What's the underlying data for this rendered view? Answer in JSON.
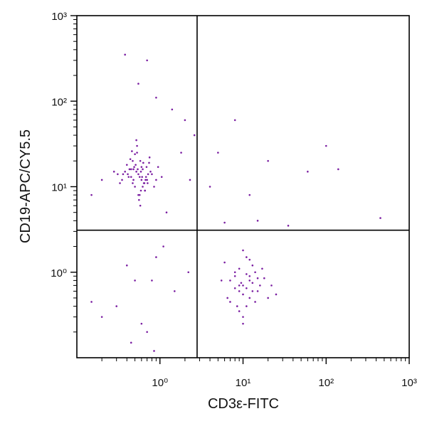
{
  "chart_data": {
    "type": "scatter",
    "x_label": "CD3ε-FITC",
    "y_label": "CD19-APC/CY5.5",
    "xscale": "log",
    "yscale": "log",
    "xlim": [
      0.1,
      1000
    ],
    "ylim": [
      0.1,
      1000
    ],
    "xticks": [
      {
        "value": 1,
        "label": "10⁰"
      },
      {
        "value": 10,
        "label": "10¹"
      },
      {
        "value": 100,
        "label": "10²"
      },
      {
        "value": 1000,
        "label": "10³"
      }
    ],
    "yticks": [
      {
        "value": 1,
        "label": "10⁰"
      },
      {
        "value": 10,
        "label": "10¹"
      },
      {
        "value": 100,
        "label": "10²"
      },
      {
        "value": 1000,
        "label": "10³"
      }
    ],
    "xminorticks": [
      0.2,
      0.3,
      0.4,
      0.5,
      0.6,
      0.7,
      0.8,
      0.9,
      2,
      3,
      4,
      5,
      6,
      7,
      8,
      9,
      20,
      30,
      40,
      50,
      60,
      70,
      80,
      90,
      200,
      300,
      400,
      500,
      600,
      700,
      800,
      900
    ],
    "yminorticks": [
      0.2,
      0.3,
      0.4,
      0.5,
      0.6,
      0.7,
      0.8,
      0.9,
      2,
      3,
      4,
      5,
      6,
      7,
      8,
      9,
      20,
      30,
      40,
      50,
      60,
      70,
      80,
      90,
      200,
      300,
      400,
      500,
      600,
      700,
      800,
      900
    ],
    "quadrant_x": 2.8,
    "quadrant_y": 3.1,
    "series": [
      {
        "color": "#7b1fa2",
        "x": [
          0.55,
          0.48,
          0.62,
          0.71,
          0.4,
          0.52,
          0.66,
          0.58,
          0.45,
          0.8,
          0.35,
          0.6,
          0.5,
          0.75,
          0.43,
          0.68,
          0.57,
          0.53,
          0.9,
          0.38,
          0.63,
          0.47,
          0.72,
          0.56,
          0.49,
          0.85,
          0.61,
          0.44,
          0.54,
          0.67,
          0.31,
          0.59,
          0.51,
          0.77,
          0.46,
          0.65,
          0.42,
          0.58,
          0.95,
          0.36,
          0.7,
          0.53,
          0.48,
          0.62,
          0.57,
          0.28,
          0.74,
          0.5,
          0.64,
          0.41,
          0.55,
          0.69,
          0.6,
          0.47,
          1.05,
          0.33,
          0.59,
          0.52,
          0.66,
          0.45,
          0.38,
          0.55,
          0.7,
          0.9,
          1.4,
          2.0,
          1.8,
          2.3,
          0.2,
          0.15,
          1.2,
          2.6,
          10,
          8,
          12,
          9,
          15,
          7,
          11,
          6,
          13,
          10,
          18,
          9,
          14,
          8,
          11,
          20,
          7,
          12,
          16,
          10,
          9,
          5.5,
          13,
          11,
          25,
          8,
          10,
          14,
          12,
          9,
          17,
          6.5,
          11,
          10,
          22,
          13,
          8.5,
          12,
          15,
          9.5,
          0.5,
          0.8,
          0.3,
          0.6,
          0.9,
          0.15,
          0.4,
          0.7,
          1.5,
          0.2,
          1.1,
          0.45,
          0.85,
          2.2,
          5,
          20,
          60,
          100,
          140,
          450,
          8,
          35,
          4,
          12,
          15,
          6
        ],
        "values": [
          14,
          12,
          16,
          11,
          18,
          15,
          9,
          20,
          13,
          14,
          12,
          17,
          10,
          22,
          16,
          13,
          8,
          25,
          12,
          15,
          19,
          11,
          14,
          7,
          17,
          10,
          13,
          21,
          16,
          12,
          14,
          9,
          18,
          15,
          26,
          11,
          13,
          6,
          17,
          14,
          12,
          30,
          16,
          10,
          13,
          15,
          19,
          24,
          11,
          14,
          8,
          17,
          12,
          20,
          13,
          11,
          15,
          35,
          9,
          16,
          350,
          160,
          300,
          110,
          80,
          60,
          25,
          12,
          12,
          8,
          5,
          40,
          0.7,
          0.9,
          0.5,
          1.1,
          0.6,
          0.8,
          0.4,
          1.3,
          0.75,
          0.55,
          0.85,
          0.35,
          1.0,
          0.65,
          1.5,
          0.5,
          0.45,
          0.9,
          0.7,
          0.3,
          0.6,
          0.8,
          1.2,
          0.65,
          0.55,
          1.0,
          1.8,
          0.45,
          0.8,
          0.7,
          1.1,
          0.5,
          0.95,
          0.25,
          0.7,
          0.6,
          0.4,
          1.4,
          0.85,
          0.75,
          0.8,
          0.8,
          0.4,
          0.25,
          1.5,
          0.45,
          1.2,
          0.2,
          0.6,
          0.3,
          2.0,
          0.15,
          0.12,
          1.0,
          25,
          20,
          15,
          30,
          16,
          4.3,
          60,
          3.5,
          10,
          8,
          4,
          3.8
        ]
      }
    ]
  }
}
